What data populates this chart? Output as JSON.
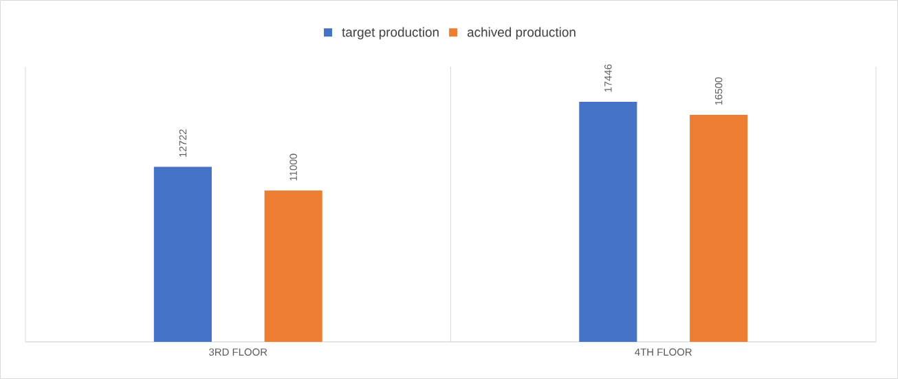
{
  "chart_data": {
    "type": "bar",
    "categories": [
      "3RD FLOOR",
      "4TH FLOOR"
    ],
    "series": [
      {
        "name": "target production",
        "color": "#4472c4",
        "values": [
          12722,
          17446
        ]
      },
      {
        "name": "achived production",
        "color": "#ed7d31",
        "values": [
          11000,
          16500
        ]
      }
    ],
    "ylim": [
      0,
      20000
    ],
    "data_labels": true,
    "grid": "x",
    "legend": "top"
  }
}
